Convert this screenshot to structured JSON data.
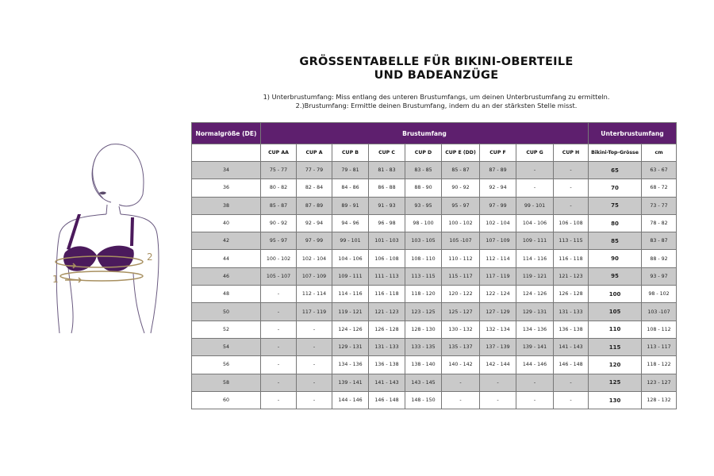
{
  "title": [
    "GRÖSSENTABELLE FÜR BIKINI-OBERTEILE",
    "UND BADEANZÜGE"
  ],
  "notes": [
    "1) Unterbrustumfang: Miss entlang des unteren Brustumfangs, um deinen Unterbrustumfang zu ermitteln.",
    "2.)Brustumfang: Ermittle deinen Brustumfang, indem du an der stärksten Stelle misst."
  ],
  "illustration": {
    "label_1": "1",
    "label_2": "2"
  },
  "colors": {
    "header": "#5e1f6e",
    "shade": "#c9c9c9",
    "tape": "#a89060",
    "bra": "#4b1a5c"
  },
  "table": {
    "group_headers": [
      "Normalgröße (DE)",
      "Brustumfang",
      "Unterbrustumfang"
    ],
    "columns": [
      "",
      "CUP AA",
      "CUP A",
      "CUP B",
      "CUP C",
      "CUP D",
      "CUP E (DD)",
      "CUP F",
      "CUP G",
      "CUP H",
      "Bikini-Top-Grösse",
      "cm"
    ],
    "rows": [
      [
        "34",
        "75 - 77",
        "77 - 79",
        "79 - 81",
        "81 - 83",
        "83 - 85",
        "85 - 87",
        "87 - 89",
        "-",
        "-",
        "65",
        "63 - 67"
      ],
      [
        "36",
        "80 - 82",
        "82 - 84",
        "84 - 86",
        "86 - 88",
        "88 - 90",
        "90 - 92",
        "92 - 94",
        "-",
        "-",
        "70",
        "68 - 72"
      ],
      [
        "38",
        "85 - 87",
        "87 - 89",
        "89 - 91",
        "91 - 93",
        "93 - 95",
        "95 - 97",
        "97 - 99",
        "99 - 101",
        "-",
        "75",
        "73 - 77"
      ],
      [
        "40",
        "90 - 92",
        "92 - 94",
        "94 - 96",
        "96 - 98",
        "98 - 100",
        "100 - 102",
        "102 - 104",
        "104 - 106",
        "106 - 108",
        "80",
        "78 - 82"
      ],
      [
        "42",
        "95 - 97",
        "97 - 99",
        "99 - 101",
        "101 - 103",
        "103 - 105",
        "105 -107",
        "107 - 109",
        "109 - 111",
        "113 - 115",
        "85",
        "83 - 87"
      ],
      [
        "44",
        "100 - 102",
        "102 - 104",
        "104 - 106",
        "106 - 108",
        "108 - 110",
        "110 - 112",
        "112 - 114",
        "114 - 116",
        "116 - 118",
        "90",
        "88 - 92"
      ],
      [
        "46",
        "105 - 107",
        "107 - 109",
        "109 - 111",
        "111 - 113",
        "113 - 115",
        "115 - 117",
        "117 - 119",
        "119 - 121",
        "121 - 123",
        "95",
        "93 - 97"
      ],
      [
        "48",
        "-",
        "112 - 114",
        "114 - 116",
        "116 - 118",
        "118 - 120",
        "120 - 122",
        "122 - 124",
        "124 - 126",
        "126 - 128",
        "100",
        "98 - 102"
      ],
      [
        "50",
        "-",
        "117 - 119",
        "119 - 121",
        "121 - 123",
        "123 - 125",
        "125 - 127",
        "127 - 129",
        "129 - 131",
        "131 - 133",
        "105",
        "103 -107"
      ],
      [
        "52",
        "-",
        "-",
        "124 - 126",
        "126 - 128",
        "128 - 130",
        "130 - 132",
        "132 - 134",
        "134 - 136",
        "136 - 138",
        "110",
        "108 - 112"
      ],
      [
        "54",
        "-",
        "-",
        "129 - 131",
        "131 - 133",
        "133 - 135",
        "135 - 137",
        "137 - 139",
        "139 - 141",
        "141 - 143",
        "115",
        "113 - 117"
      ],
      [
        "56",
        "-",
        "-",
        "134 - 136",
        "136 - 138",
        "138 - 140",
        "140 - 142",
        "142 - 144",
        "144 - 146",
        "146 - 148",
        "120",
        "118 - 122"
      ],
      [
        "58",
        "-",
        "-",
        "139 - 141",
        "141 - 143",
        "143 - 145",
        "-",
        "-",
        "-",
        "-",
        "125",
        "123 - 127"
      ],
      [
        "60",
        "-",
        "-",
        "144 - 146",
        "146 - 148",
        "148 - 150",
        "-",
        "-",
        "-",
        "-",
        "130",
        "128 - 132"
      ]
    ]
  }
}
